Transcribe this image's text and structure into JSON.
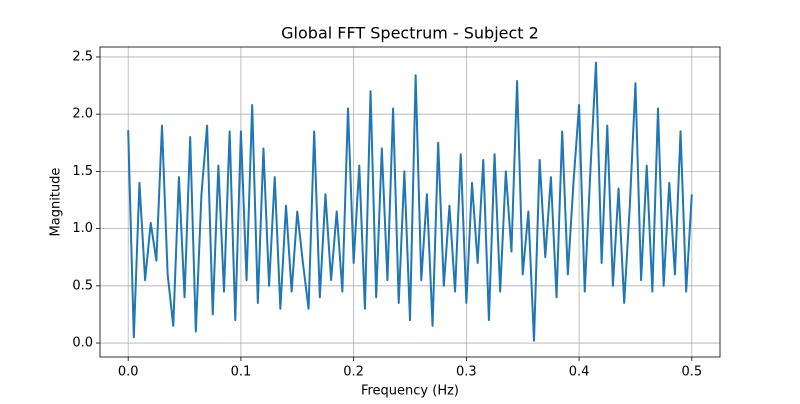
{
  "chart_data": {
    "type": "line",
    "title": "Global FFT Spectrum - Subject 2",
    "xlabel": "Frequency (Hz)",
    "ylabel": "Magnitude",
    "color": "#1f77b4",
    "grid": true,
    "xlim": [
      -0.025,
      0.525
    ],
    "ylim": [
      -0.122,
      2.587
    ],
    "xticks": [
      {
        "value": 0,
        "label": "0.0"
      },
      0.1,
      0.2,
      0.3,
      0.4,
      0.5
    ],
    "yticks": [
      {
        "value": 0,
        "label": "0.0"
      },
      0.5,
      {
        "value": 1,
        "label": "1.0"
      },
      1.5,
      {
        "value": 2,
        "label": "2.0"
      },
      2.5
    ],
    "x": [
      0.0,
      0.005,
      0.01,
      0.015,
      0.02,
      0.025,
      0.03,
      0.035,
      0.04,
      0.045,
      0.05,
      0.055,
      0.06,
      0.065,
      0.07,
      0.075,
      0.08,
      0.085,
      0.09,
      0.095,
      0.1,
      0.105,
      0.11,
      0.115,
      0.12,
      0.125,
      0.13,
      0.135,
      0.14,
      0.145,
      0.15,
      0.155,
      0.16,
      0.165,
      0.17,
      0.175,
      0.18,
      0.185,
      0.19,
      0.195,
      0.2,
      0.205,
      0.21,
      0.215,
      0.22,
      0.225,
      0.23,
      0.235,
      0.24,
      0.245,
      0.25,
      0.255,
      0.26,
      0.265,
      0.27,
      0.275,
      0.28,
      0.285,
      0.29,
      0.295,
      0.3,
      0.305,
      0.31,
      0.315,
      0.32,
      0.325,
      0.33,
      0.335,
      0.34,
      0.345,
      0.35,
      0.355,
      0.36,
      0.365,
      0.37,
      0.375,
      0.38,
      0.385,
      0.39,
      0.395,
      0.4,
      0.405,
      0.41,
      0.415,
      0.42,
      0.425,
      0.43,
      0.435,
      0.44,
      0.445,
      0.45,
      0.455,
      0.46,
      0.465,
      0.47,
      0.475,
      0.48,
      0.485,
      0.49,
      0.495,
      0.5
    ],
    "values": [
      1.86,
      0.05,
      1.4,
      0.55,
      1.05,
      0.72,
      1.9,
      0.6,
      0.15,
      1.45,
      0.4,
      1.8,
      0.1,
      1.3,
      1.9,
      0.25,
      1.55,
      0.45,
      1.85,
      0.2,
      1.85,
      0.55,
      2.08,
      0.35,
      1.7,
      0.5,
      1.45,
      0.3,
      1.2,
      0.45,
      1.15,
      0.7,
      0.3,
      1.85,
      0.4,
      1.3,
      0.55,
      1.15,
      0.45,
      2.05,
      0.7,
      1.55,
      0.3,
      2.2,
      0.4,
      1.7,
      0.55,
      2.05,
      0.35,
      1.5,
      0.2,
      2.34,
      0.55,
      1.3,
      0.15,
      1.75,
      0.5,
      1.2,
      0.45,
      1.65,
      0.35,
      1.4,
      0.7,
      1.6,
      0.2,
      1.65,
      0.45,
      1.5,
      0.8,
      2.29,
      0.6,
      1.15,
      0.02,
      1.6,
      0.75,
      1.45,
      0.4,
      1.85,
      0.6,
      1.4,
      2.08,
      0.45,
      1.5,
      2.45,
      0.7,
      1.9,
      0.5,
      1.35,
      0.35,
      1.2,
      2.27,
      0.55,
      1.55,
      0.45,
      2.05,
      0.5,
      1.4,
      0.6,
      1.85,
      0.45,
      1.3
    ]
  }
}
